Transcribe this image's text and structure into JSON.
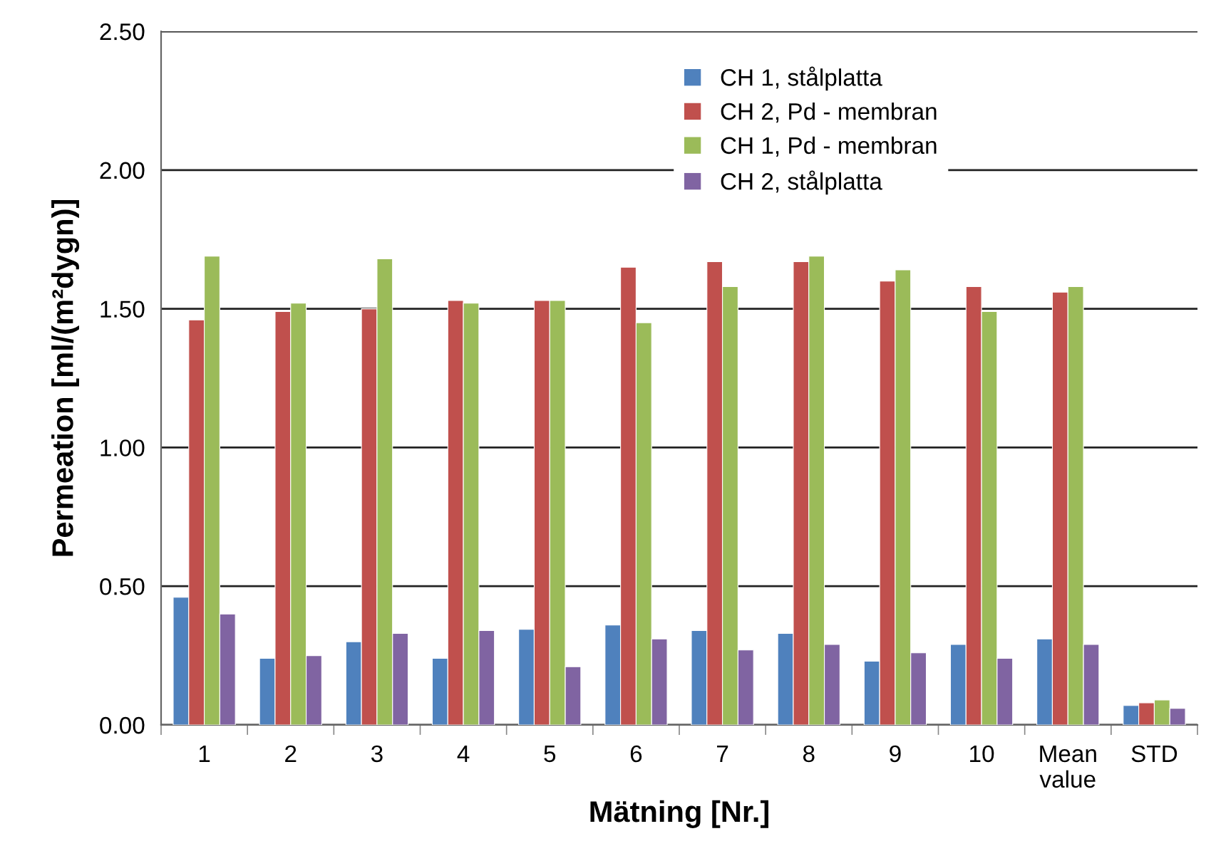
{
  "chart_data": {
    "type": "bar",
    "xlabel": "Mätning [Nr.]",
    "ylabel": "Permeation [ml/(m²dygn)]",
    "categories": [
      "1",
      "2",
      "3",
      "4",
      "5",
      "6",
      "7",
      "8",
      "9",
      "10",
      "Mean value",
      "STD"
    ],
    "series": [
      {
        "name": "CH 1, stålplatta",
        "color": "#4f81bd",
        "values": [
          0.46,
          0.24,
          0.3,
          0.24,
          0.345,
          0.36,
          0.34,
          0.33,
          0.23,
          0.29,
          0.31,
          0.07
        ]
      },
      {
        "name": "CH 2, Pd - membran",
        "color": "#c0504d",
        "values": [
          1.46,
          1.49,
          1.5,
          1.53,
          1.53,
          1.65,
          1.67,
          1.67,
          1.6,
          1.58,
          1.56,
          0.08
        ]
      },
      {
        "name": "CH 1, Pd - membran",
        "color": "#9bbb59",
        "values": [
          1.69,
          1.52,
          1.68,
          1.52,
          1.53,
          1.45,
          1.58,
          1.69,
          1.64,
          1.49,
          1.58,
          0.09
        ]
      },
      {
        "name": "CH 2, stålplatta",
        "color": "#8064a2",
        "values": [
          0.4,
          0.25,
          0.33,
          0.34,
          0.21,
          0.31,
          0.27,
          0.29,
          0.26,
          0.24,
          0.29,
          0.06
        ]
      }
    ],
    "ylim": [
      0,
      2.5
    ],
    "yticks": [
      {
        "value": 0,
        "label": "0.00"
      },
      {
        "value": 0.5,
        "label": "0.50"
      },
      {
        "value": 1,
        "label": "1.00"
      },
      {
        "value": 1.5,
        "label": "1.50"
      },
      {
        "value": 2,
        "label": "2.00"
      },
      {
        "value": 2.5,
        "label": "2.50"
      }
    ],
    "grid": "y",
    "legend": "top right"
  }
}
